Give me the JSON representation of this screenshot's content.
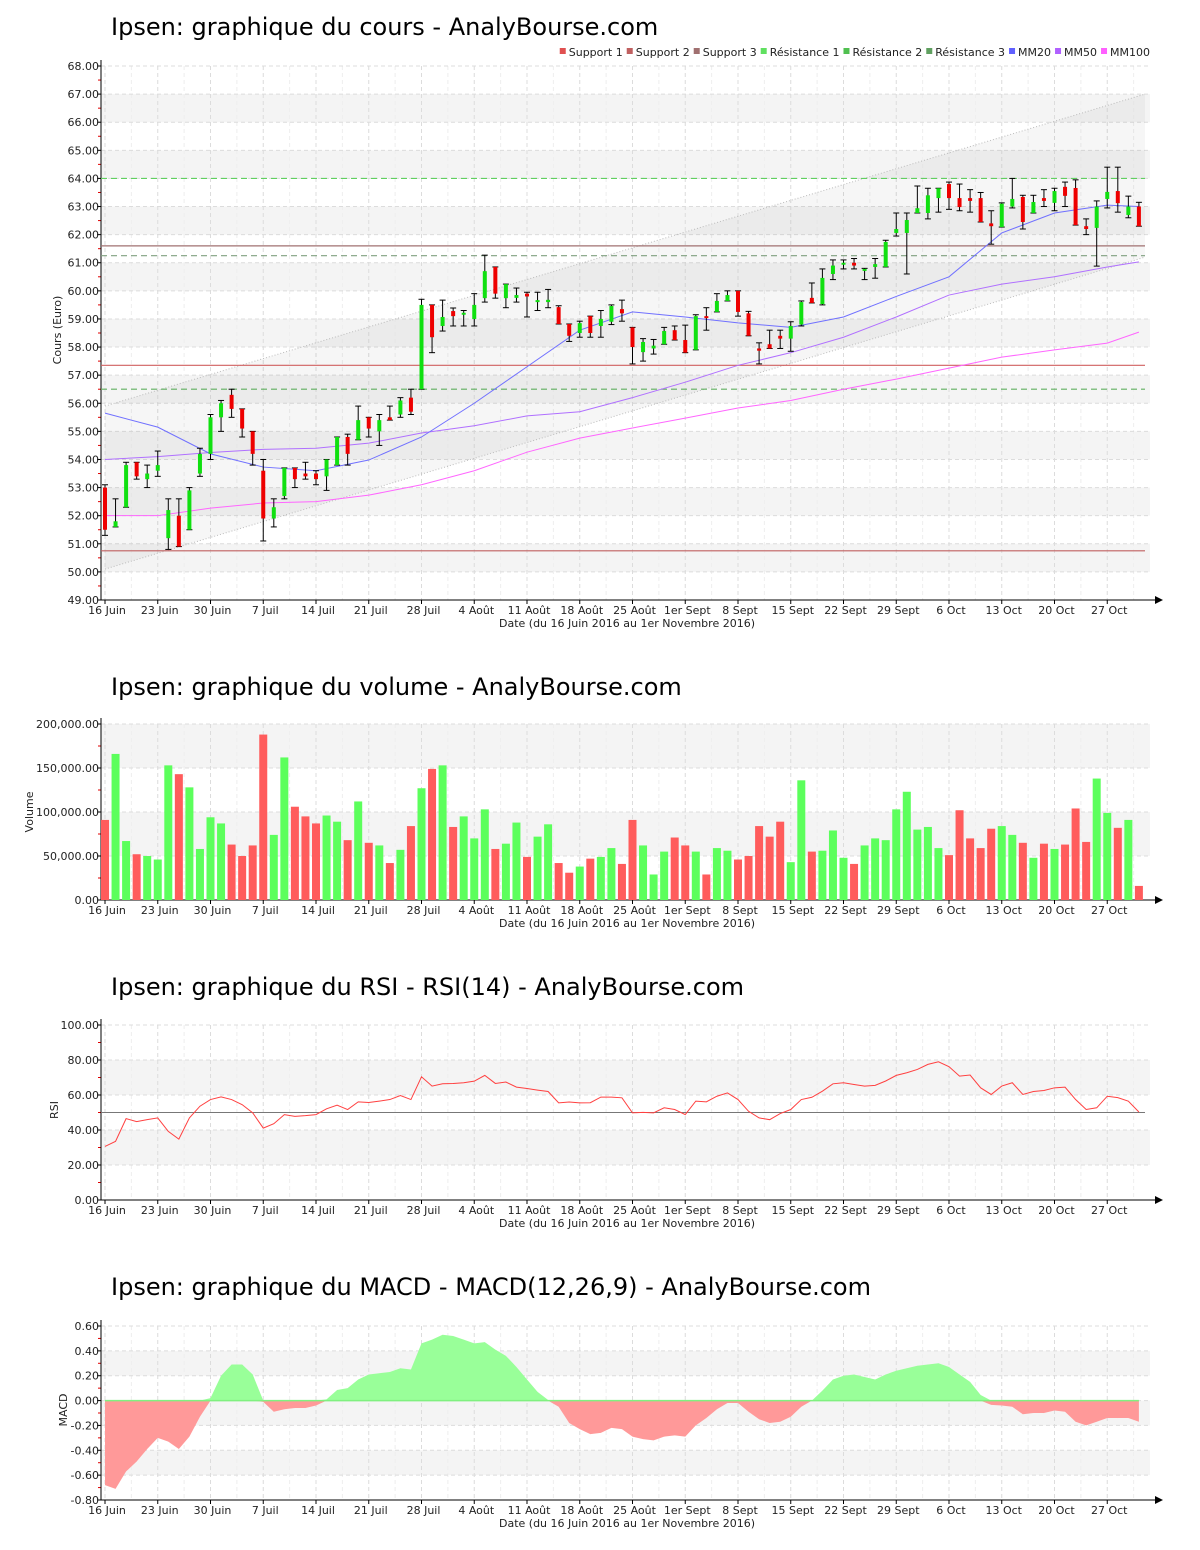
{
  "colors": {
    "up": "#10e010",
    "down": "#ee0000",
    "vol_up": "#5cff5c",
    "vol_down": "#ff5c5c",
    "macd_pos": "#99ff99",
    "macd_neg": "#ff9999",
    "rsi": "#ff4040",
    "mm20": "#7070ff",
    "mm50": "#b070ff",
    "mm100": "#ff66ff"
  },
  "x_axis": {
    "date_label": "Date (du 16 Juin 2016 au 1er Novembre 2016)",
    "tick_every": 5,
    "tick_labels": [
      "16 Juin",
      "23 Juin",
      "30 Juin",
      "7 Juil",
      "14 Juil",
      "21 Juil",
      "28 Juil",
      "4 Août",
      "11 Août",
      "18 Août",
      "25 Août",
      "1er Sept",
      "8 Sept",
      "15 Sept",
      "22 Sept",
      "29 Sept",
      "6 Oct",
      "13 Oct",
      "20 Oct",
      "27 Oct"
    ]
  },
  "chart_data": [
    {
      "id": "price",
      "type": "candlestick",
      "title": "Ipsen: graphique du cours - AnalyBourse.com",
      "ylabel": "Cours (Euro)",
      "ylim": [
        49,
        68
      ],
      "ystep": 1,
      "decimals": 2,
      "legend_position": "top-right",
      "legend": [
        {
          "name": "Support 1",
          "color": "#e05050"
        },
        {
          "name": "Support 2",
          "color": "#c06060"
        },
        {
          "name": "Support 3",
          "color": "#a07070"
        },
        {
          "name": "Résistance 1",
          "color": "#60e060"
        },
        {
          "name": "Résistance 2",
          "color": "#50c050"
        },
        {
          "name": "Résistance 3",
          "color": "#60a060"
        },
        {
          "name": "MM20",
          "color": "#6060ff"
        },
        {
          "name": "MM50",
          "color": "#b060ff"
        },
        {
          "name": "MM100",
          "color": "#ff60ff"
        }
      ],
      "supports": [
        {
          "value": 57.35,
          "color": "#d06060"
        },
        {
          "value": 50.75,
          "color": "#c06060"
        },
        {
          "value": 61.6,
          "color": "#a07070"
        }
      ],
      "resistances": [
        {
          "value": 56.5,
          "color": "#60b060"
        },
        {
          "value": 64.0,
          "color": "#60d060"
        },
        {
          "value": 61.25,
          "color": "#80a080"
        }
      ],
      "channel": {
        "upper": [
          55.9,
          67.0
        ],
        "lower": [
          50.1,
          61.2
        ]
      },
      "ohlc_fields": [
        "open",
        "high",
        "low",
        "close"
      ],
      "ohlc": [
        [
          53,
          53.1,
          51.3,
          51.5
        ],
        [
          51.6,
          52.6,
          51.6,
          51.8
        ],
        [
          52.3,
          53.9,
          52.3,
          53.8
        ],
        [
          53.9,
          53.9,
          53.3,
          53.4
        ],
        [
          53.3,
          53.8,
          53,
          53.5
        ],
        [
          53.6,
          54.3,
          53.4,
          53.8
        ],
        [
          51.2,
          52.6,
          50.8,
          52.2
        ],
        [
          52,
          52.6,
          50.9,
          50.9
        ],
        [
          51.5,
          53,
          51.5,
          52.9
        ],
        [
          53.5,
          54.4,
          53.4,
          54.2
        ],
        [
          54.2,
          55.6,
          54,
          55.5
        ],
        [
          55.5,
          56.1,
          55,
          56
        ],
        [
          56.3,
          56.5,
          55.5,
          55.8
        ],
        [
          55.8,
          55.8,
          54.8,
          55.1
        ],
        [
          55,
          55,
          53.8,
          54.2
        ],
        [
          53.6,
          54,
          51.1,
          51.9
        ],
        [
          51.9,
          52.6,
          51.6,
          52.3
        ],
        [
          52.7,
          53.7,
          52.6,
          53.7
        ],
        [
          53.7,
          53.7,
          53,
          53.3
        ],
        [
          53.5,
          53.9,
          53.3,
          53.4
        ],
        [
          53.5,
          53.6,
          53.1,
          53.3
        ],
        [
          53.4,
          54,
          52.9,
          54
        ],
        [
          53.8,
          54.8,
          53.8,
          54.8
        ],
        [
          54.8,
          54.9,
          53.8,
          54.2
        ],
        [
          54.7,
          55.9,
          54.7,
          55.4
        ],
        [
          55.5,
          55.5,
          54.8,
          55.1
        ],
        [
          55,
          55.6,
          54.5,
          55.4
        ],
        [
          55.5,
          55.9,
          55.4,
          55.4
        ],
        [
          55.6,
          56.2,
          55.5,
          56.1
        ],
        [
          56.2,
          56.5,
          55.6,
          55.7
        ],
        [
          56.5,
          59.7,
          56.5,
          59.5
        ],
        [
          59.5,
          59.5,
          57.8,
          58.35
        ],
        [
          58.75,
          59.67,
          58.57,
          59.07
        ],
        [
          59.28,
          59.39,
          58.75,
          59.1
        ],
        [
          59.15,
          59.3,
          58.75,
          59.22
        ],
        [
          59.0,
          59.9,
          58.75,
          59.5
        ],
        [
          59.74,
          61.27,
          59.6,
          60.7
        ],
        [
          60.85,
          60.85,
          59.74,
          59.9
        ],
        [
          59.74,
          60.24,
          59.4,
          60.24
        ],
        [
          59.75,
          60.1,
          59.6,
          59.85
        ],
        [
          59.9,
          59.95,
          59.07,
          59.8
        ],
        [
          59.6,
          59.95,
          59.3,
          59.67
        ],
        [
          59.6,
          60.05,
          59.4,
          59.68
        ],
        [
          59.42,
          59.47,
          58.82,
          58.82
        ],
        [
          58.82,
          58.82,
          58.2,
          58.4
        ],
        [
          58.5,
          58.92,
          58.35,
          58.85
        ],
        [
          59.1,
          59.1,
          58.35,
          58.5
        ],
        [
          58.75,
          59.3,
          58.35,
          59.0
        ],
        [
          58.9,
          59.5,
          58.8,
          59.46
        ],
        [
          59.35,
          59.67,
          58.92,
          59.2
        ],
        [
          58.7,
          58.7,
          57.4,
          58.0
        ],
        [
          57.82,
          58.3,
          57.5,
          58.18
        ],
        [
          57.95,
          58.27,
          57.75,
          58.05
        ],
        [
          58.1,
          58.7,
          58.1,
          58.57
        ],
        [
          58.6,
          58.75,
          58.25,
          58.25
        ],
        [
          58.25,
          58.78,
          57.8,
          57.8
        ],
        [
          57.9,
          59.15,
          57.9,
          59.1
        ],
        [
          59.1,
          59.4,
          58.6,
          59.05
        ],
        [
          59.25,
          59.9,
          59.25,
          59.64
        ],
        [
          59.64,
          60.0,
          59.64,
          59.85
        ],
        [
          60.0,
          60.0,
          59.1,
          59.25
        ],
        [
          59.2,
          59.27,
          58.4,
          58.4
        ],
        [
          57.95,
          58.15,
          57.4,
          57.87
        ],
        [
          58.1,
          58.6,
          57.95,
          57.95
        ],
        [
          58.4,
          58.6,
          57.95,
          58.3
        ],
        [
          58.3,
          58.9,
          57.85,
          58.75
        ],
        [
          58.8,
          59.64,
          58.75,
          59.6
        ],
        [
          59.75,
          60.28,
          59.57,
          59.57
        ],
        [
          59.53,
          60.78,
          59.5,
          60.46
        ],
        [
          60.6,
          61.1,
          60.4,
          60.9
        ],
        [
          60.95,
          61.1,
          60.78,
          61.0
        ],
        [
          61.0,
          61.15,
          60.78,
          60.9
        ],
        [
          60.72,
          60.8,
          60.4,
          60.78
        ],
        [
          60.85,
          61.15,
          60.45,
          60.95
        ],
        [
          60.85,
          61.8,
          60.85,
          61.74
        ],
        [
          62.06,
          62.77,
          61.95,
          62.2
        ],
        [
          62.06,
          62.77,
          60.6,
          62.52
        ],
        [
          62.77,
          63.73,
          62.77,
          62.94
        ],
        [
          62.77,
          63.65,
          62.56,
          63.4
        ],
        [
          63.3,
          63.65,
          62.8,
          63.65
        ],
        [
          63.8,
          63.87,
          62.9,
          63.3
        ],
        [
          63.3,
          63.8,
          62.85,
          62.98
        ],
        [
          63.3,
          63.6,
          62.8,
          63.2
        ],
        [
          63.3,
          63.5,
          62.45,
          62.45
        ],
        [
          62.4,
          62.85,
          61.66,
          62.3
        ],
        [
          62.27,
          63.13,
          62.27,
          63.1
        ],
        [
          63.0,
          64.0,
          62.95,
          63.27
        ],
        [
          63.34,
          63.4,
          62.2,
          62.45
        ],
        [
          62.77,
          63.4,
          62.77,
          63.16
        ],
        [
          63.3,
          63.6,
          63.0,
          63.2
        ],
        [
          63.13,
          63.65,
          62.85,
          63.55
        ],
        [
          63.7,
          63.87,
          63.0,
          63.38
        ],
        [
          63.66,
          63.95,
          62.34,
          62.34
        ],
        [
          62.3,
          62.56,
          62.0,
          62.2
        ],
        [
          62.24,
          63.2,
          60.88,
          63.0
        ],
        [
          63.27,
          64.4,
          62.95,
          63.52
        ],
        [
          63.55,
          64.4,
          62.8,
          63.12
        ],
        [
          62.7,
          63.37,
          62.6,
          63.0
        ],
        [
          63.0,
          63.15,
          62.3,
          62.3
        ]
      ],
      "moving_averages": {
        "sample_index": [
          0,
          5,
          10,
          15,
          20,
          25,
          30,
          35,
          40,
          45,
          50,
          55,
          60,
          65,
          70,
          75,
          80,
          85,
          90,
          95,
          98
        ],
        "MM20": [
          55.65,
          55.15,
          54.2,
          53.73,
          53.6,
          53.98,
          54.8,
          56.0,
          57.3,
          58.6,
          59.25,
          59.07,
          58.86,
          58.7,
          59.07,
          59.8,
          60.5,
          62.06,
          62.77,
          63.05,
          63.0
        ],
        "MM50": [
          54.0,
          54.1,
          54.25,
          54.36,
          54.4,
          54.58,
          54.94,
          55.2,
          55.55,
          55.7,
          56.2,
          56.75,
          57.35,
          57.8,
          58.35,
          59.07,
          59.85,
          60.24,
          60.5,
          60.85,
          61.03
        ],
        "MM100": [
          52.0,
          52.0,
          52.27,
          52.45,
          52.5,
          52.73,
          53.1,
          53.6,
          54.26,
          54.76,
          55.12,
          55.47,
          55.83,
          56.1,
          56.5,
          56.86,
          57.25,
          57.64,
          57.9,
          58.14,
          58.53
        ]
      }
    },
    {
      "id": "volume",
      "type": "bar",
      "title": "Ipsen: graphique du volume - AnalyBourse.com",
      "ylabel": "Volume",
      "ylim": [
        0,
        200000
      ],
      "ystep": 50000,
      "decimals": 2,
      "thousands": true,
      "values": [
        91000,
        166000,
        67000,
        52000,
        50000,
        46000,
        153000,
        143000,
        128000,
        58000,
        94000,
        87000,
        63000,
        50000,
        62000,
        188000,
        74000,
        162000,
        106000,
        95000,
        87000,
        96000,
        89000,
        68000,
        112000,
        65000,
        62000,
        42000,
        57000,
        84000,
        127000,
        149000,
        153000,
        83000,
        95000,
        70000,
        103000,
        58000,
        64000,
        88000,
        49000,
        72000,
        86000,
        42000,
        31000,
        38000,
        47000,
        49000,
        59000,
        41000,
        91000,
        62000,
        29000,
        55000,
        71000,
        62000,
        55000,
        29000,
        59000,
        56000,
        46000,
        50000,
        84000,
        72000,
        89000,
        43000,
        136000,
        55000,
        56000,
        79000,
        48000,
        41000,
        62000,
        70000,
        68000,
        103000,
        123000,
        80000,
        83000,
        59000,
        51000,
        102000,
        70000,
        59000,
        81000,
        84000,
        74000,
        65000,
        48000,
        64000,
        58000,
        63000,
        104000,
        66000,
        138000,
        99000,
        82000,
        91000,
        16000
      ]
    },
    {
      "id": "rsi",
      "type": "line",
      "title": "Ipsen: graphique du RSI - RSI(14) - AnalyBourse.com",
      "ylabel": "RSI",
      "ylim": [
        0,
        100
      ],
      "ystep": 20,
      "decimals": 2,
      "reference_line": 50,
      "values": [
        30.6,
        33.5,
        46.5,
        44.8,
        45.9,
        46.9,
        39.2,
        34.8,
        46.9,
        53.6,
        57.4,
        58.9,
        57.4,
        54.5,
        49.8,
        41.1,
        43.6,
        48.8,
        47.8,
        48.2,
        48.8,
        52.1,
        54.2,
        51.7,
        56.1,
        55.7,
        56.5,
        57.4,
        59.7,
        57.4,
        70.4,
        65.1,
        66.4,
        66.6,
        67.0,
        67.9,
        71.2,
        66.6,
        67.4,
        64.5,
        63.7,
        62.8,
        62.0,
        55.5,
        56.0,
        55.5,
        55.6,
        58.8,
        58.8,
        58.4,
        49.8,
        50.1,
        49.8,
        52.7,
        51.7,
        48.8,
        56.5,
        56.1,
        59.3,
        61.2,
        57.4,
        50.7,
        46.9,
        45.9,
        49.4,
        51.7,
        57.4,
        58.7,
        62.2,
        66.4,
        67.0,
        66.0,
        65.1,
        65.5,
        68.0,
        71.2,
        72.7,
        74.6,
        77.5,
        79.0,
        76.2,
        70.8,
        71.4,
        64.1,
        60.3,
        65.1,
        67.0,
        60.3,
        62.0,
        62.6,
        64.1,
        64.5,
        57.4,
        51.7,
        52.7,
        59.3,
        58.5,
        56.5,
        50.3
      ]
    },
    {
      "id": "macd",
      "type": "area",
      "title": "Ipsen: graphique du MACD - MACD(12,26,9) - AnalyBourse.com",
      "ylabel": "MACD",
      "ylim": [
        -0.8,
        0.6
      ],
      "ystep": 0.2,
      "decimals": 2,
      "values": [
        -0.68,
        -0.71,
        -0.57,
        -0.49,
        -0.39,
        -0.3,
        -0.33,
        -0.39,
        -0.29,
        -0.13,
        0.02,
        0.2,
        0.29,
        0.29,
        0.21,
        -0.01,
        -0.09,
        -0.07,
        -0.06,
        -0.06,
        -0.04,
        0.01,
        0.085,
        0.1,
        0.17,
        0.21,
        0.22,
        0.23,
        0.26,
        0.25,
        0.46,
        0.49,
        0.53,
        0.52,
        0.49,
        0.46,
        0.47,
        0.41,
        0.36,
        0.27,
        0.17,
        0.07,
        0.005,
        -0.05,
        -0.18,
        -0.23,
        -0.27,
        -0.26,
        -0.22,
        -0.23,
        -0.29,
        -0.31,
        -0.32,
        -0.29,
        -0.28,
        -0.29,
        -0.2,
        -0.14,
        -0.07,
        -0.02,
        -0.02,
        -0.09,
        -0.15,
        -0.18,
        -0.17,
        -0.13,
        -0.05,
        0.0,
        0.08,
        0.17,
        0.2,
        0.21,
        0.19,
        0.17,
        0.21,
        0.24,
        0.26,
        0.28,
        0.29,
        0.3,
        0.27,
        0.21,
        0.15,
        0.045,
        -0.035,
        -0.04,
        -0.05,
        -0.11,
        -0.1,
        -0.1,
        -0.08,
        -0.09,
        -0.17,
        -0.2,
        -0.17,
        -0.14,
        -0.14,
        -0.14,
        -0.17
      ]
    }
  ]
}
